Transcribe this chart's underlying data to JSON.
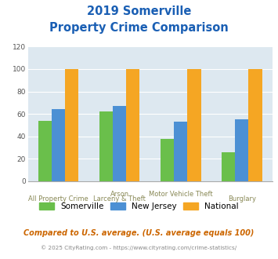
{
  "title_line1": "2019 Somerville",
  "title_line2": "Property Crime Comparison",
  "title_color": "#1a5fb4",
  "cat_labels_top": [
    "",
    "Arson",
    "Motor Vehicle Theft",
    ""
  ],
  "cat_labels_bot": [
    "All Property Crime",
    "Larceny & Theft",
    "",
    "Burglary"
  ],
  "somerville": [
    54,
    62,
    38,
    26
  ],
  "new_jersey": [
    64,
    67,
    53,
    55
  ],
  "national": [
    100,
    100,
    100,
    100
  ],
  "somerville_color": "#6abf4b",
  "nj_color": "#4c90d4",
  "national_color": "#f5a623",
  "ylim": [
    0,
    120
  ],
  "yticks": [
    0,
    20,
    40,
    60,
    80,
    100,
    120
  ],
  "background_color": "#dde8f0",
  "grid_color": "#ffffff",
  "bar_width": 0.22,
  "footnote": "Compared to U.S. average. (U.S. average equals 100)",
  "footnote2": "© 2025 CityRating.com - https://www.cityrating.com/crime-statistics/",
  "footnote_color": "#cc6600",
  "footnote2_color": "#888888",
  "legend_labels": [
    "Somerville",
    "New Jersey",
    "National"
  ]
}
